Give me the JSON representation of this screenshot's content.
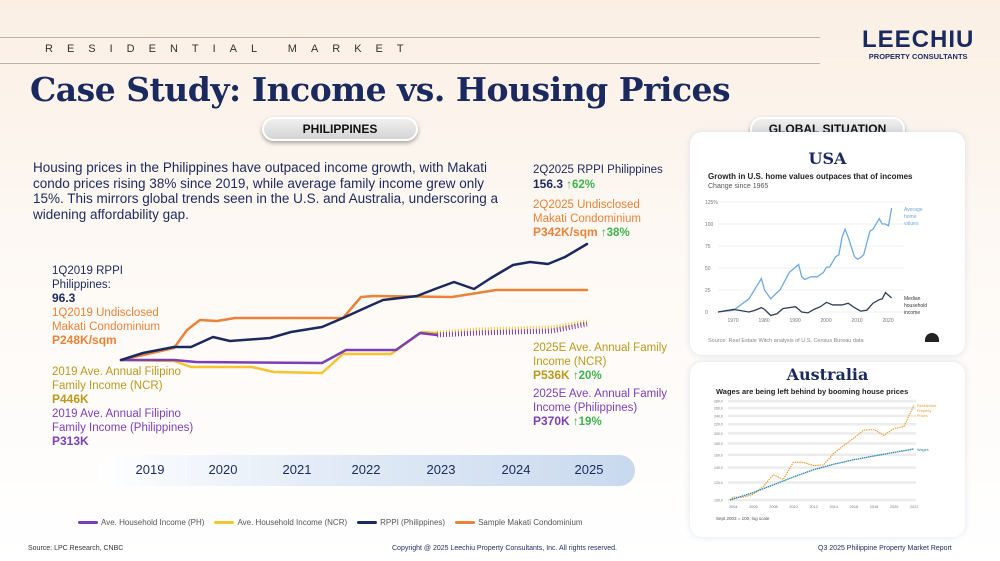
{
  "header": {
    "section": "RESIDENTIAL MARKET",
    "logo_main": "LEECHIU",
    "logo_sub": "PROPERTY CONSULTANTS",
    "title": "Case Study: Income vs. Housing Prices"
  },
  "philippines": {
    "pill": "PHILIPPINES",
    "intro": "Housing prices in the Philippines have outpaced income growth, with Makati condo prices rising 38% since 2019, while average family income grew only 15%. This mirrors global trends seen in the U.S. and Australia, underscoring a widening affordability gap.",
    "labels": {
      "rppi_start_title": "1Q2019 RPPI Philippines:",
      "rppi_start_value": "96.3",
      "condo_start_title": "1Q2019 Undisclosed Makati Condominium",
      "condo_start_value": "P248K/sqm",
      "ncr_start_title": "2019 Ave. Annual Filipino Family Income (NCR)",
      "ncr_start_value": "P446K",
      "ph_start_title": "2019 Ave. Annual Filipino Family Income (Philippines)",
      "ph_start_value": "P313K",
      "rppi_end_title": "2Q2025 RPPI Philippines",
      "rppi_end_value": "156.3",
      "rppi_end_change": "↑62%",
      "condo_end_title": "2Q2025 Undisclosed Makati Condominium",
      "condo_end_value": "P342K/sqm",
      "condo_end_change": "↑38%",
      "ncr_end_title": "2025E Ave. Annual Family Income (NCR)",
      "ncr_end_value": "P536K",
      "ncr_end_change": "↑20%",
      "ph_end_title": "2025E Ave. Annual Family Income (Philippines)",
      "ph_end_value": "P370K",
      "ph_end_change": "↑19%"
    },
    "legend": [
      "Ave. Household Income (PH)",
      "Ave. Household Income (NCR)",
      "RPPI (Philippines)",
      "Sample Makati Condominium"
    ]
  },
  "global": {
    "pill": "GLOBAL SITUATION",
    "usa_title": "USA",
    "australia_title": "Australia"
  },
  "footer": {
    "source": "Source: LPC Research, CNBC",
    "copyright": "Copyright @ 2025 Leechiu Property Consultants, Inc. All rights reserved.",
    "report": "Q3 2025 Philippine Property Market Report"
  },
  "colors": {
    "ph": "#7b3fb5",
    "ncr": "#f5c430",
    "rppi": "#1b2a5e",
    "condo": "#e8833a",
    "usa_home": "#6fa8e0",
    "usa_income": "#2f3e55",
    "au_property": "#f29a2e",
    "au_wages": "#2a86b0",
    "up": "#3cb44b"
  },
  "chart_data": [
    {
      "type": "line",
      "title": "",
      "categories": [
        "2019",
        "2020",
        "2021",
        "2022",
        "2023",
        "2024",
        "2025"
      ],
      "series": [
        {
          "name": "RPPI (Philippines)",
          "start": 96.3,
          "end": 156.3
        },
        {
          "name": "Sample Makati Condominium",
          "start": 248,
          "end": 342,
          "unit": "K/sqm"
        },
        {
          "name": "Ave. Household Income (NCR)",
          "start": 446,
          "end": 536,
          "unit": "K",
          "projected_from": "2023"
        },
        {
          "name": "Ave. Household Income (PH)",
          "start": 313,
          "end": 370,
          "unit": "K",
          "projected_from": "2023"
        }
      ]
    },
    {
      "type": "line",
      "title": "Growth in U.S. home values outpaces that of incomes",
      "subtitle": "Change since 1965",
      "source": "Source: Real Estate Witch analysis of U.S. Census Bureau data",
      "yticks": [
        "125%",
        "100",
        "75",
        "50",
        "25",
        "0"
      ],
      "xticks": [
        "1970",
        "1980",
        "1990",
        "2000",
        "2010",
        "2020"
      ],
      "ylim": [
        -5,
        125
      ],
      "xlim": [
        1965,
        2022
      ],
      "series": [
        {
          "name": "Average home values",
          "points": [
            [
              1965,
              0
            ],
            [
              1970,
              2
            ],
            [
              1975,
              15
            ],
            [
              1979,
              38
            ],
            [
              1980,
              25
            ],
            [
              1982,
              15
            ],
            [
              1984,
              22
            ],
            [
              1985,
              25
            ],
            [
              1988,
              45
            ],
            [
              1991,
              54
            ],
            [
              1992,
              40
            ],
            [
              1993,
              37
            ],
            [
              1995,
              40
            ],
            [
              1997,
              40
            ],
            [
              1999,
              45
            ],
            [
              2000,
              51
            ],
            [
              2001,
              51
            ],
            [
              2003,
              63
            ],
            [
              2004,
              65
            ],
            [
              2005,
              85
            ],
            [
              2006,
              94
            ],
            [
              2007,
              85
            ],
            [
              2009,
              63
            ],
            [
              2010,
              60
            ],
            [
              2011,
              62
            ],
            [
              2012,
              65
            ],
            [
              2014,
              92
            ],
            [
              2015,
              94
            ],
            [
              2017,
              106
            ],
            [
              2018,
              100
            ],
            [
              2019,
              100
            ],
            [
              2020,
              98
            ],
            [
              2021,
              118
            ]
          ]
        },
        {
          "name": "Median household income",
          "points": [
            [
              1965,
              0
            ],
            [
              1970,
              3
            ],
            [
              1975,
              0
            ],
            [
              1977,
              2
            ],
            [
              1979,
              5
            ],
            [
              1980,
              3
            ],
            [
              1982,
              -4
            ],
            [
              1984,
              -2
            ],
            [
              1986,
              4
            ],
            [
              1988,
              5
            ],
            [
              1990,
              6
            ],
            [
              1992,
              0
            ],
            [
              1994,
              -1
            ],
            [
              1996,
              3
            ],
            [
              1998,
              6
            ],
            [
              2000,
              11
            ],
            [
              2002,
              8
            ],
            [
              2005,
              8
            ],
            [
              2007,
              10
            ],
            [
              2009,
              5
            ],
            [
              2011,
              1
            ],
            [
              2013,
              2
            ],
            [
              2015,
              10
            ],
            [
              2017,
              14
            ],
            [
              2018,
              15
            ],
            [
              2019,
              22
            ],
            [
              2020,
              19
            ],
            [
              2021,
              16
            ]
          ]
        }
      ]
    },
    {
      "type": "line",
      "title": "Wages are being left behind by booming house prices",
      "note": "Sept 2003 = 100, log scale",
      "scale": "log",
      "yticks": [
        "280.0",
        "260.0",
        "240.0",
        "220.0",
        "200.0",
        "180.0",
        "160.0",
        "140.0",
        "120.0",
        "100.0"
      ],
      "xticks": [
        "2004",
        "2006",
        "2008",
        "2010",
        "2012",
        "2014",
        "2016",
        "2018",
        "2020",
        "2022"
      ],
      "ylim": [
        100,
        280
      ],
      "series": [
        {
          "name": "Residential Property Prices",
          "points": [
            [
              2003.7,
              100
            ],
            [
              2004,
              103
            ],
            [
              2005,
              103
            ],
            [
              2006,
              106
            ],
            [
              2007,
              115
            ],
            [
              2008,
              130
            ],
            [
              2009,
              124
            ],
            [
              2010,
              148
            ],
            [
              2011,
              148
            ],
            [
              2012,
              143
            ],
            [
              2013,
              144
            ],
            [
              2014,
              162
            ],
            [
              2015,
              176
            ],
            [
              2016,
              190
            ],
            [
              2017,
              207
            ],
            [
              2018,
              208
            ],
            [
              2019,
              196
            ],
            [
              2020,
              210
            ],
            [
              2021,
              215
            ],
            [
              2022,
              268
            ]
          ]
        },
        {
          "name": "Wages",
          "points": [
            [
              2003.7,
              100
            ],
            [
              2006,
              108
            ],
            [
              2008,
              117
            ],
            [
              2010,
              127
            ],
            [
              2012,
              137
            ],
            [
              2014,
              145
            ],
            [
              2016,
              152
            ],
            [
              2018,
              158
            ],
            [
              2020,
              164
            ],
            [
              2022,
              170
            ]
          ]
        }
      ]
    }
  ]
}
